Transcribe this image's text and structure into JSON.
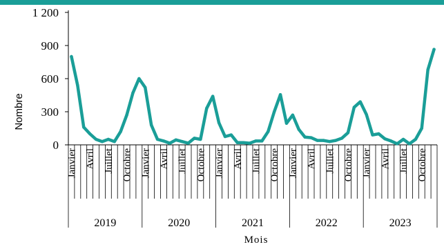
{
  "chart_data": {
    "type": "line",
    "title": "",
    "xlabel": "Mois",
    "ylabel": "Nombre",
    "ylim": [
      0,
      1200
    ],
    "yticks": [
      0,
      300,
      600,
      900,
      1200
    ],
    "ytick_labels": [
      "0",
      "300",
      "600",
      "900",
      "1 200"
    ],
    "years": [
      "2019",
      "2020",
      "2021",
      "2022",
      "2023"
    ],
    "month_labels": [
      "Janvier",
      "Avril",
      "Juillet",
      "Octobre"
    ],
    "month_label_index": [
      0,
      3,
      6,
      9
    ],
    "series": [
      {
        "color": "#1a9e98",
        "values": [
          800,
          540,
          160,
          100,
          50,
          30,
          50,
          30,
          120,
          270,
          470,
          600,
          520,
          180,
          50,
          35,
          15,
          45,
          30,
          15,
          60,
          50,
          330,
          440,
          200,
          75,
          90,
          20,
          20,
          15,
          35,
          35,
          120,
          300,
          455,
          195,
          270,
          140,
          70,
          65,
          40,
          40,
          30,
          40,
          60,
          110,
          340,
          390,
          275,
          90,
          100,
          55,
          35,
          10,
          50,
          10,
          50,
          150,
          680,
          865
        ]
      }
    ]
  }
}
